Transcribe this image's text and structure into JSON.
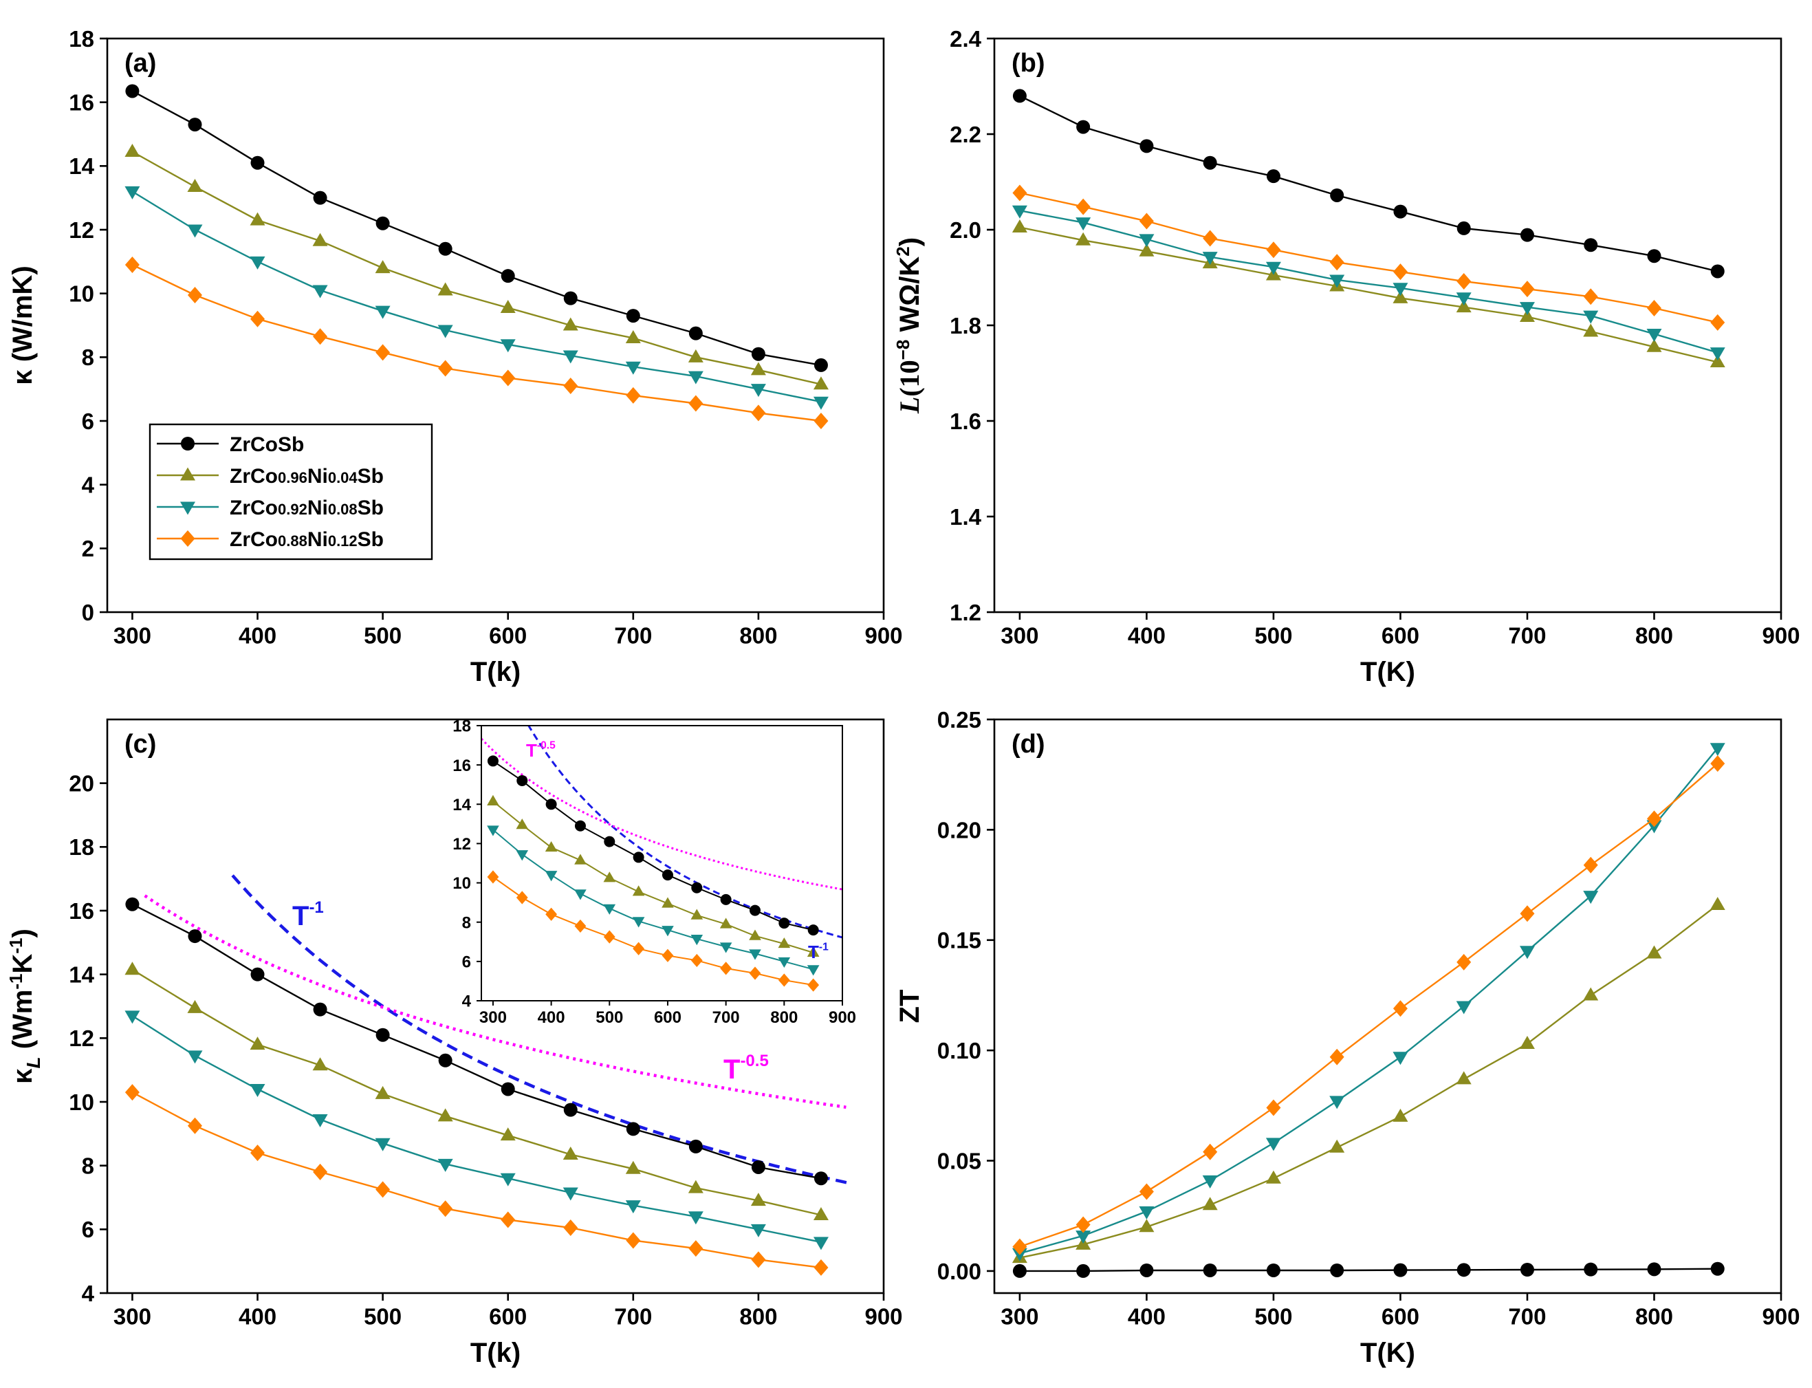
{
  "series_styles": [
    {
      "key": "ZrCoSb",
      "color": "#000000",
      "marker": "circle"
    },
    {
      "key": "ZrCo0.96Ni0.04Sb",
      "color": "#8B8B1E",
      "marker": "triangle-up"
    },
    {
      "key": "ZrCo0.92Ni0.08Sb",
      "color": "#178B8B",
      "marker": "triangle-down"
    },
    {
      "key": "ZrCo0.88Ni0.12Sb",
      "color": "#FF8000",
      "marker": "diamond"
    }
  ],
  "legend": {
    "entries": [
      {
        "base": "ZrCoSb",
        "parts": [
          {
            "t": "ZrCoSb",
            "sub": false
          }
        ]
      },
      {
        "base": "ZrCo0.96Ni0.04Sb",
        "parts": [
          {
            "t": "ZrCo",
            "sub": false
          },
          {
            "t": "0.96",
            "sub": true
          },
          {
            "t": "Ni",
            "sub": false
          },
          {
            "t": "0.04",
            "sub": true
          },
          {
            "t": "Sb",
            "sub": false
          }
        ]
      },
      {
        "base": "ZrCo0.92Ni0.08Sb",
        "parts": [
          {
            "t": "ZrCo",
            "sub": false
          },
          {
            "t": "0.92",
            "sub": true
          },
          {
            "t": "Ni",
            "sub": false
          },
          {
            "t": "0.08",
            "sub": true
          },
          {
            "t": "Sb",
            "sub": false
          }
        ]
      },
      {
        "base": "ZrCo0.88Ni0.12Sb",
        "parts": [
          {
            "t": "ZrCo",
            "sub": false
          },
          {
            "t": "0.88",
            "sub": true
          },
          {
            "t": "Ni",
            "sub": false
          },
          {
            "t": "0.12",
            "sub": true
          },
          {
            "t": "Sb",
            "sub": false
          }
        ]
      }
    ]
  },
  "chart_data": [
    {
      "id": "a",
      "type": "line",
      "panel_label": "(a)",
      "xlabel": "T(k)",
      "ylabel": "κ (W/mK)",
      "xlim": [
        280,
        900
      ],
      "ylim": [
        0,
        18
      ],
      "xticks": [
        300,
        400,
        500,
        600,
        700,
        800,
        900
      ],
      "yticks": [
        0,
        2,
        4,
        6,
        8,
        10,
        12,
        14,
        16,
        18
      ],
      "x": [
        300,
        350,
        400,
        450,
        500,
        550,
        600,
        650,
        700,
        750,
        800,
        850
      ],
      "series": [
        {
          "name": "ZrCoSb",
          "values": [
            16.35,
            15.3,
            14.1,
            13.0,
            12.2,
            11.4,
            10.55,
            9.85,
            9.3,
            8.75,
            8.1,
            7.75
          ]
        },
        {
          "name": "ZrCo0.96Ni0.04Sb",
          "values": [
            14.45,
            13.35,
            12.3,
            11.65,
            10.8,
            10.1,
            9.55,
            9.0,
            8.6,
            8.0,
            7.6,
            7.15
          ]
        },
        {
          "name": "ZrCo0.92Ni0.08Sb",
          "values": [
            13.2,
            12.0,
            11.0,
            10.1,
            9.45,
            8.85,
            8.4,
            8.05,
            7.7,
            7.4,
            7.0,
            6.6
          ]
        },
        {
          "name": "ZrCo0.88Ni0.12Sb",
          "values": [
            10.9,
            9.95,
            9.2,
            8.65,
            8.15,
            7.65,
            7.35,
            7.1,
            6.8,
            6.55,
            6.25,
            6.0
          ]
        }
      ]
    },
    {
      "id": "b",
      "type": "line",
      "panel_label": "(b)",
      "xlabel": "T(K)",
      "ylabel": "L(10^-8 WΩ/K^2)",
      "xlim": [
        280,
        900
      ],
      "ylim": [
        1.2,
        2.4
      ],
      "xticks": [
        300,
        400,
        500,
        600,
        700,
        800,
        900
      ],
      "yticks": [
        1.2,
        1.4,
        1.6,
        1.8,
        2.0,
        2.2,
        2.4
      ],
      "x": [
        300,
        350,
        400,
        450,
        500,
        550,
        600,
        650,
        700,
        750,
        800,
        850
      ],
      "series": [
        {
          "name": "ZrCoSb",
          "values": [
            2.28,
            2.215,
            2.175,
            2.14,
            2.112,
            2.072,
            2.038,
            2.003,
            1.989,
            1.968,
            1.945,
            1.913
          ]
        },
        {
          "name": "ZrCo0.96Ni0.04Sb",
          "values": [
            2.005,
            1.978,
            1.955,
            1.93,
            1.905,
            1.882,
            1.857,
            1.838,
            1.818,
            1.787,
            1.755,
            1.723
          ]
        },
        {
          "name": "ZrCo0.92Ni0.08Sb",
          "values": [
            2.04,
            2.015,
            1.98,
            1.943,
            1.922,
            1.895,
            1.878,
            1.858,
            1.838,
            1.82,
            1.782,
            1.743
          ]
        },
        {
          "name": "ZrCo0.88Ni0.12Sb",
          "values": [
            2.077,
            2.048,
            2.018,
            1.982,
            1.958,
            1.932,
            1.912,
            1.892,
            1.876,
            1.86,
            1.836,
            1.806
          ]
        }
      ]
    },
    {
      "id": "c",
      "type": "line",
      "panel_label": "(c)",
      "xlabel": "T(k)",
      "ylabel": "κL (Wm^-1K^-1)",
      "xlim": [
        280,
        900
      ],
      "ylim": [
        4,
        22
      ],
      "xticks": [
        300,
        400,
        500,
        600,
        700,
        800,
        900
      ],
      "yticks": [
        4,
        6,
        8,
        10,
        12,
        14,
        16,
        18,
        20
      ],
      "x": [
        300,
        350,
        400,
        450,
        500,
        550,
        600,
        650,
        700,
        750,
        800,
        850
      ],
      "series": [
        {
          "name": "ZrCoSb",
          "values": [
            16.2,
            15.2,
            14.0,
            12.9,
            12.1,
            11.3,
            10.4,
            9.75,
            9.15,
            8.6,
            7.95,
            7.6
          ]
        },
        {
          "name": "ZrCo0.96Ni0.04Sb",
          "values": [
            14.15,
            12.95,
            11.8,
            11.15,
            10.25,
            9.55,
            8.95,
            8.35,
            7.9,
            7.3,
            6.9,
            6.45
          ]
        },
        {
          "name": "ZrCo0.92Ni0.08Sb",
          "values": [
            12.7,
            11.45,
            10.4,
            9.45,
            8.7,
            8.05,
            7.6,
            7.15,
            6.75,
            6.4,
            6.0,
            5.6
          ]
        },
        {
          "name": "ZrCo0.88Ni0.12Sb",
          "values": [
            10.3,
            9.25,
            8.4,
            7.8,
            7.25,
            6.65,
            6.3,
            6.05,
            5.65,
            5.4,
            5.05,
            4.8
          ]
        }
      ],
      "fits": [
        {
          "name": "T^-1",
          "color": "#1A1AE6",
          "style": "dashed",
          "coef": 6500,
          "exponent": -1,
          "xrange": [
            380,
            875
          ]
        },
        {
          "name": "T^-0.5",
          "color": "#FF00FF",
          "style": "dotted",
          "coef": 290,
          "exponent": -0.5,
          "xrange": [
            310,
            870
          ]
        }
      ],
      "annotations": [
        {
          "base": "T",
          "sup": "-1",
          "color": "#1A1AE6"
        },
        {
          "base": "T",
          "sup": "-0.5",
          "color": "#FF00FF"
        }
      ]
    },
    {
      "id": "c-inset",
      "type": "line",
      "panel_label": "",
      "xlabel": "",
      "ylabel": "",
      "xlim": [
        280,
        900
      ],
      "ylim": [
        4,
        18
      ],
      "xticks": [
        300,
        400,
        500,
        600,
        700,
        800,
        900
      ],
      "yticks": [
        4,
        6,
        8,
        10,
        12,
        14,
        16,
        18
      ],
      "x": [
        300,
        350,
        400,
        450,
        500,
        550,
        600,
        650,
        700,
        750,
        800,
        850
      ],
      "series": [
        {
          "name": "ZrCoSb",
          "values": [
            16.2,
            15.2,
            14.0,
            12.9,
            12.1,
            11.3,
            10.4,
            9.75,
            9.15,
            8.6,
            7.95,
            7.6
          ]
        },
        {
          "name": "ZrCo0.96Ni0.04Sb",
          "values": [
            14.15,
            12.95,
            11.8,
            11.15,
            10.25,
            9.55,
            8.95,
            8.35,
            7.9,
            7.3,
            6.9,
            6.45
          ]
        },
        {
          "name": "ZrCo0.92Ni0.08Sb",
          "values": [
            12.7,
            11.45,
            10.4,
            9.45,
            8.7,
            8.05,
            7.6,
            7.15,
            6.75,
            6.4,
            6.0,
            5.6
          ]
        },
        {
          "name": "ZrCo0.88Ni0.12Sb",
          "values": [
            10.3,
            9.25,
            8.4,
            7.8,
            7.25,
            6.65,
            6.3,
            6.05,
            5.65,
            5.4,
            5.05,
            4.8
          ]
        }
      ],
      "fits": [
        {
          "name": "T^-1",
          "color": "#1A1AE6",
          "style": "dashed",
          "coef": 6500,
          "exponent": -1,
          "xrange": [
            360,
            900
          ]
        },
        {
          "name": "T^-0.5",
          "color": "#FF00FF",
          "style": "dotted",
          "coef": 290,
          "exponent": -0.5,
          "xrange": [
            280,
            900
          ]
        }
      ],
      "annotations": [
        {
          "base": "T",
          "sup": "-0.5",
          "color": "#FF00FF"
        },
        {
          "base": "T",
          "sup": "-1",
          "color": "#1A1AE6"
        }
      ]
    },
    {
      "id": "d",
      "type": "line",
      "panel_label": "(d)",
      "xlabel": "T(K)",
      "ylabel": "ZT",
      "xlim": [
        280,
        900
      ],
      "ylim": [
        -0.01,
        0.25
      ],
      "xticks": [
        300,
        400,
        500,
        600,
        700,
        800,
        900
      ],
      "yticks": [
        0.0,
        0.05,
        0.1,
        0.15,
        0.2,
        0.25
      ],
      "x": [
        300,
        350,
        400,
        450,
        500,
        550,
        600,
        650,
        700,
        750,
        800,
        850
      ],
      "series": [
        {
          "name": "ZrCoSb",
          "values": [
            0.0,
            0.0,
            0.0003,
            0.0003,
            0.0003,
            0.0003,
            0.0004,
            0.0005,
            0.0006,
            0.0007,
            0.0008,
            0.001
          ]
        },
        {
          "name": "ZrCo0.96Ni0.04Sb",
          "values": [
            0.006,
            0.012,
            0.02,
            0.03,
            0.042,
            0.056,
            0.07,
            0.087,
            0.103,
            0.125,
            0.144,
            0.166
          ]
        },
        {
          "name": "ZrCo0.92Ni0.08Sb",
          "values": [
            0.008,
            0.016,
            0.027,
            0.041,
            0.058,
            0.077,
            0.097,
            0.12,
            0.145,
            0.17,
            0.202,
            0.237
          ]
        },
        {
          "name": "ZrCo0.88Ni0.12Sb",
          "values": [
            0.011,
            0.021,
            0.036,
            0.054,
            0.074,
            0.097,
            0.119,
            0.14,
            0.162,
            0.184,
            0.205,
            0.23
          ]
        }
      ]
    }
  ]
}
